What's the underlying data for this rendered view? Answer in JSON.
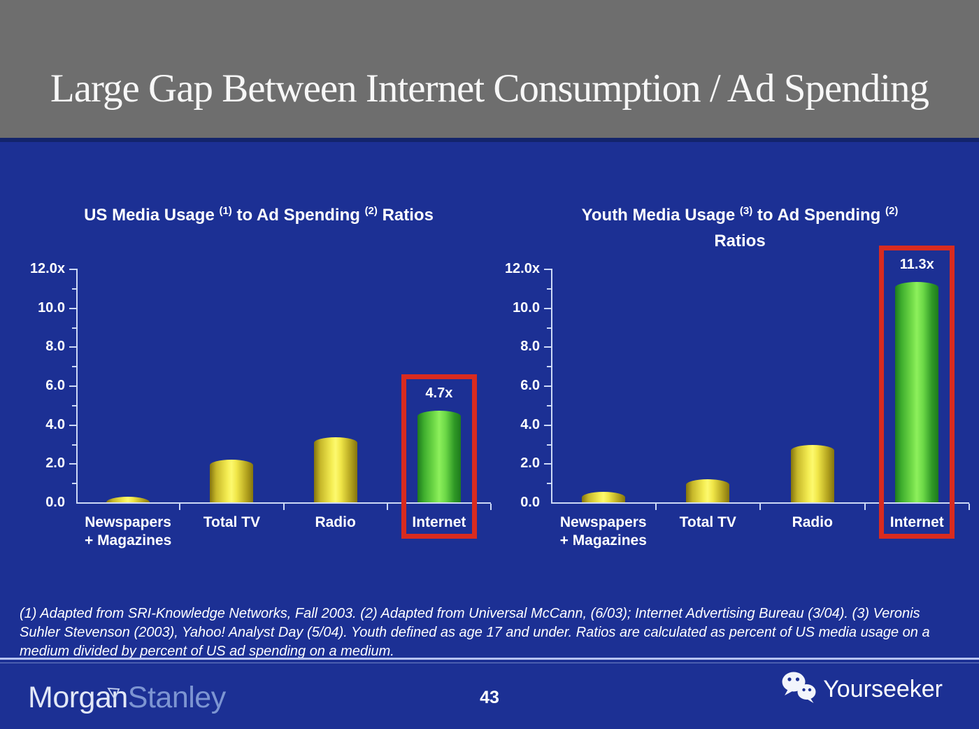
{
  "slide": {
    "title": "Large Gap Between Internet Consumption / Ad Spending",
    "footnote": "(1) Adapted from SRI-Knowledge Networks, Fall 2003.  (2) Adapted from Universal McCann, (6/03); Internet Advertising Bureau (3/04). (3) Veronis Suhler Stevenson (2003), Yahoo! Analyst Day (5/04).  Youth defined as age 17 and under.  Ratios are calculated as percent of US media usage on a medium divided by percent of US ad spending on a medium.",
    "page_number": "43"
  },
  "footer": {
    "logo_morgan": "Morgan",
    "logo_stanley": "Stanley",
    "logo_mark": "angle-triangle-icon",
    "watermark_label": "Yourseeker",
    "watermark_icon": "wechat-icon"
  },
  "colors": {
    "header_bg": "#6e6e6e",
    "slide_bg": "#1c3094",
    "title_text": "#f7f7f7",
    "chart_text": "#ffffff",
    "axis": "#cdd9f6",
    "bar_yellow": "#f4ec52",
    "bar_green": "#74dd4a",
    "highlight_red": "#d92b1f",
    "divider": "#b6c3f0",
    "logo_morgan": "#e2e8f7",
    "logo_stanley": "#7d95d2"
  },
  "chart_data": [
    {
      "type": "bar",
      "title": "US Media Usage (1) to Ad Spending (2) Ratios",
      "title_segments": [
        {
          "text": "US Media Usage "
        },
        {
          "sup": "(1)"
        },
        {
          "text": " to Ad Spending "
        },
        {
          "sup": "(2)"
        },
        {
          "text": " Ratios"
        }
      ],
      "categories": [
        {
          "lines": [
            "Newspapers",
            "+ Magazines"
          ]
        },
        {
          "lines": [
            "Total TV"
          ]
        },
        {
          "lines": [
            "Radio"
          ]
        },
        {
          "lines": [
            "Internet"
          ]
        }
      ],
      "values": [
        0.3,
        2.2,
        3.35,
        4.7
      ],
      "bar_styles": [
        "yellow",
        "yellow",
        "yellow",
        "green"
      ],
      "ylim": [
        0,
        12
      ],
      "yticks": [
        {
          "label": "12.0x",
          "value": 12
        },
        {
          "label": "10.0",
          "value": 10
        },
        {
          "label": "8.0",
          "value": 8
        },
        {
          "label": "6.0",
          "value": 6
        },
        {
          "label": "4.0",
          "value": 4
        },
        {
          "label": "2.0",
          "value": 2
        },
        {
          "label": "0.0",
          "value": 0
        }
      ],
      "grid": false,
      "legend": null,
      "xlabel": "",
      "ylabel": "",
      "highlight": {
        "index": 3,
        "label": "4.7x"
      }
    },
    {
      "type": "bar",
      "title": "Youth Media Usage (3) to Ad Spending (2) Ratios",
      "title_segments": [
        {
          "text": "Youth Media Usage "
        },
        {
          "sup": "(3)"
        },
        {
          "text": " to Ad Spending "
        },
        {
          "sup": "(2)"
        },
        {
          "br": true
        },
        {
          "text": "Ratios"
        }
      ],
      "categories": [
        {
          "lines": [
            "Newspapers",
            "+ Magazines"
          ]
        },
        {
          "lines": [
            "Total TV"
          ]
        },
        {
          "lines": [
            "Radio"
          ]
        },
        {
          "lines": [
            "Internet"
          ]
        }
      ],
      "values": [
        0.55,
        1.2,
        2.95,
        11.3
      ],
      "bar_styles": [
        "yellow",
        "yellow",
        "yellow",
        "green"
      ],
      "ylim": [
        0,
        12
      ],
      "yticks": [
        {
          "label": "12.0x",
          "value": 12
        },
        {
          "label": "10.0",
          "value": 10
        },
        {
          "label": "8.0",
          "value": 8
        },
        {
          "label": "6.0",
          "value": 6
        },
        {
          "label": "4.0",
          "value": 4
        },
        {
          "label": "2.0",
          "value": 2
        },
        {
          "label": "0.0",
          "value": 0
        }
      ],
      "grid": false,
      "legend": null,
      "xlabel": "",
      "ylabel": "",
      "highlight": {
        "index": 3,
        "label": "11.3x"
      }
    }
  ]
}
